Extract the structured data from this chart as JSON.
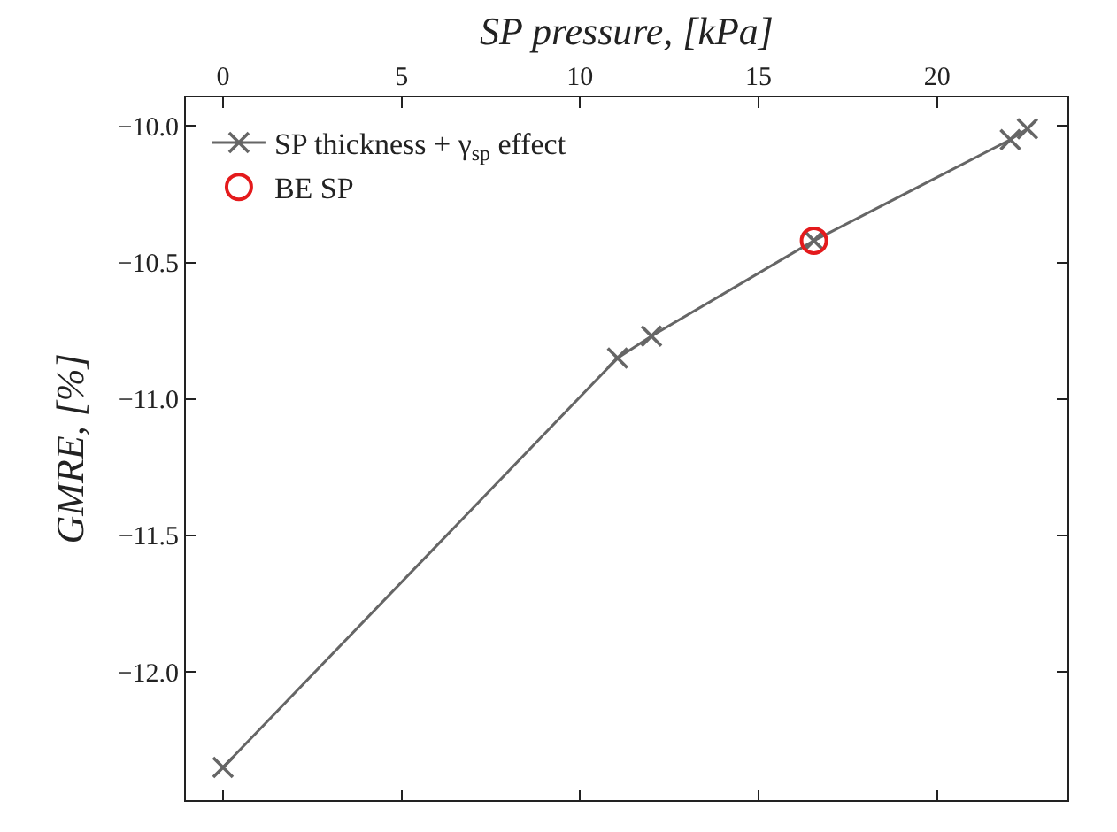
{
  "chart_data": {
    "type": "line",
    "xlabel": "SP pressure, [kPa]",
    "ylabel": "GMRE, [%]",
    "xlim": [
      -1.04,
      23.65
    ],
    "xticks": [
      0,
      5,
      10,
      15,
      20
    ],
    "ylim": [
      -12.47,
      -9.895
    ],
    "yticks": [
      {
        "value": -10,
        "label": "−10.0"
      },
      {
        "value": -10.5,
        "label": "−10.5"
      },
      {
        "value": -11,
        "label": "−11.0"
      },
      {
        "value": -11.5,
        "label": "−11.5"
      },
      {
        "value": -12,
        "label": "−12.0"
      }
    ],
    "grid": false,
    "legend": "top left",
    "series": [
      {
        "name": "SP thickness + γ$_{sp}$ effect",
        "color": "#666666",
        "marker": "cross",
        "x": [
          0,
          11.05,
          12.0,
          16.55,
          22.05,
          22.53
        ],
        "values": [
          -12.35,
          -10.85,
          -10.77,
          -10.42,
          -10.05,
          -10.01
        ]
      },
      {
        "name": "BE SP",
        "type": "scatter",
        "color": "#e41a1c",
        "marker": "circle",
        "x": [
          16.55
        ],
        "values": [
          -10.42
        ]
      }
    ]
  }
}
